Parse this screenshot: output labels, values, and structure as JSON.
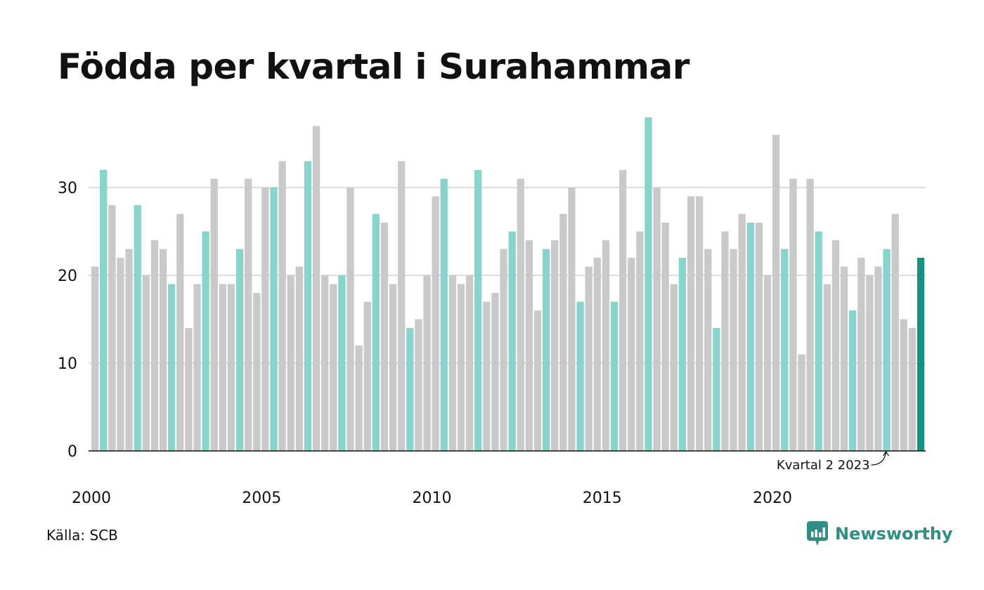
{
  "title": "Födda per kvartal i Surahammar",
  "source": "Källa: SCB",
  "brand": {
    "name": "Newsworthy",
    "icon": "newsworthy-logo-icon"
  },
  "colors": {
    "bar_default": "#c9c9c9",
    "bar_q2": "#88d3cc",
    "bar_latest": "#17917f",
    "grid": "#dddddd",
    "axis": "#111111",
    "brand": "#2f8f83"
  },
  "chart_data": {
    "type": "bar",
    "start": "2000 Q1",
    "frequency": "quarterly",
    "values": [
      21,
      32,
      28,
      22,
      23,
      28,
      20,
      24,
      23,
      19,
      27,
      14,
      19,
      25,
      31,
      19,
      19,
      23,
      31,
      18,
      30,
      30,
      33,
      20,
      21,
      33,
      37,
      20,
      19,
      20,
      30,
      12,
      17,
      27,
      26,
      19,
      33,
      14,
      15,
      20,
      29,
      31,
      20,
      19,
      20,
      32,
      17,
      18,
      23,
      25,
      31,
      24,
      16,
      23,
      24,
      27,
      30,
      17,
      21,
      22,
      24,
      17,
      32,
      22,
      25,
      38,
      30,
      26,
      19,
      22,
      29,
      29,
      23,
      14,
      25,
      23,
      27,
      26,
      26,
      20,
      36,
      23,
      31,
      11,
      31,
      25,
      19,
      24,
      21,
      16,
      22,
      20,
      21,
      23,
      27,
      15,
      14,
      22
    ],
    "highlight": "Q2",
    "x_tick_labels": [
      "2000",
      "2005",
      "2010",
      "2015",
      "2020"
    ],
    "y_ticks": [
      0,
      10,
      20,
      30
    ],
    "ylim": [
      0,
      38
    ],
    "grid": true,
    "annotation": {
      "label": "Kvartal 2 2023",
      "target": "2023 Q2"
    }
  }
}
